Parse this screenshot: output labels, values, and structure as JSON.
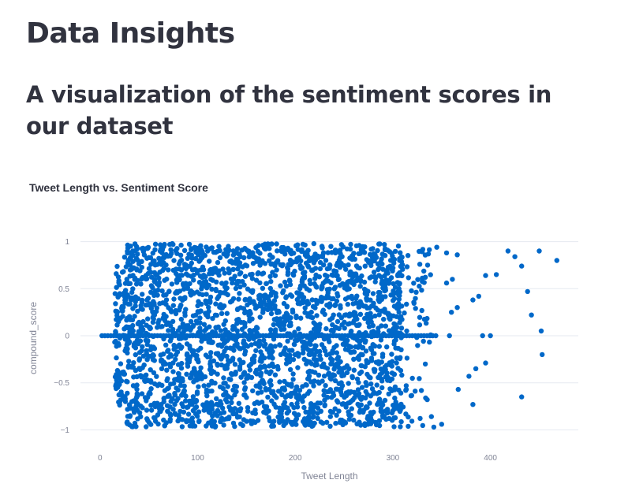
{
  "page": {
    "title": "Data Insights",
    "subtitle": "A visualization of the sentiment scores in our dataset"
  },
  "colors": {
    "point": "#0068c9",
    "grid": "#e6eaf1",
    "text": "#31333f",
    "tick": "#808495"
  },
  "chart_data": {
    "type": "scatter",
    "title": "Tweet Length vs. Sentiment Score",
    "xlabel": "Tweet Length",
    "ylabel": "compound_score",
    "xlim": [
      -20,
      490
    ],
    "ylim": [
      -1.08,
      1.03
    ],
    "x_ticks": [
      0,
      100,
      200,
      300,
      400
    ],
    "y_ticks": [
      1,
      0.5,
      0,
      -0.5,
      -1
    ],
    "y_tick_labels": [
      "1",
      "0.5",
      "0",
      "−0.5",
      "−1"
    ],
    "grid": true,
    "legend": "none",
    "dense_region": {
      "x": [
        15,
        320
      ],
      "y": [
        -0.97,
        0.98
      ]
    },
    "outliers": [
      [
        468,
        0.8
      ],
      [
        450,
        0.9
      ],
      [
        432,
        0.74
      ],
      [
        418,
        0.9
      ],
      [
        425,
        0.84
      ],
      [
        406,
        0.65
      ],
      [
        395,
        0.64
      ],
      [
        388,
        0.42
      ],
      [
        382,
        0.38
      ],
      [
        366,
        0.3
      ],
      [
        360,
        0.25
      ],
      [
        355,
        0.56
      ],
      [
        361,
        0.6
      ],
      [
        366,
        0.86
      ],
      [
        355,
        0.88
      ],
      [
        345,
        0.94
      ],
      [
        442,
        0.22
      ],
      [
        438,
        0.47
      ],
      [
        452,
        0.05
      ],
      [
        400,
        0.0
      ],
      [
        392,
        0.0
      ],
      [
        358,
        0.0
      ],
      [
        453,
        -0.2
      ],
      [
        395,
        -0.29
      ],
      [
        385,
        -0.35
      ],
      [
        378,
        -0.43
      ],
      [
        367,
        -0.57
      ],
      [
        382,
        -0.73
      ],
      [
        432,
        -0.65
      ],
      [
        342,
        -0.97
      ],
      [
        350,
        -0.94
      ]
    ]
  }
}
